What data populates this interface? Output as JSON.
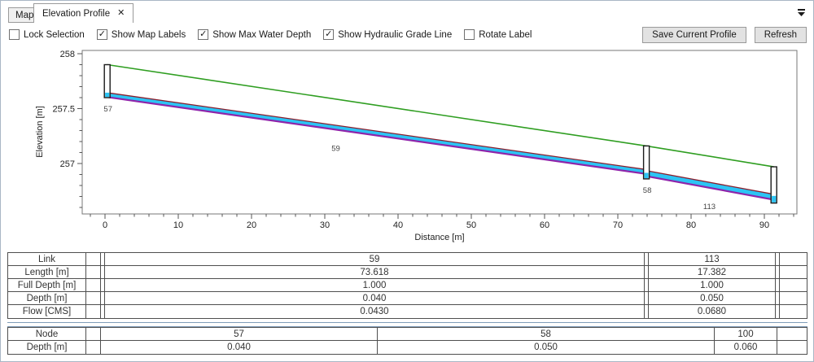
{
  "tabs": [
    {
      "label": "Map",
      "active": false
    },
    {
      "label": "Elevation Profile",
      "active": true,
      "close_glyph": "✕"
    }
  ],
  "toolbar": {
    "checkboxes": [
      {
        "label": "Lock Selection",
        "checked": false
      },
      {
        "label": "Show Map Labels",
        "checked": true
      },
      {
        "label": "Show Max Water Depth",
        "checked": true
      },
      {
        "label": "Show Hydraulic Grade Line",
        "checked": true
      },
      {
        "label": "Rotate Label",
        "checked": false
      }
    ],
    "buttons": {
      "save": "Save Current Profile",
      "refresh": "Refresh"
    }
  },
  "chart_data": {
    "type": "line",
    "title": "",
    "xlabel": "Distance [m]",
    "ylabel": "Elevation [m]",
    "xlim": [
      -3.1,
      94.5
    ],
    "ylim": [
      256.54,
      258.03
    ],
    "x_axis": {
      "major": [
        0,
        10,
        20,
        30,
        40,
        50,
        60,
        70,
        80,
        90
      ],
      "minor_from": -2,
      "minor_to": 94,
      "minor_step": 2
    },
    "y_axis": {
      "major": [
        {
          "v": 258,
          "label": "258"
        },
        {
          "v": 257.5,
          "label": "257.5"
        },
        {
          "v": 257,
          "label": "257"
        }
      ],
      "minor_from": 256.6,
      "minor_to": 258.0,
      "minor_step": 0.1
    },
    "nodes": [
      {
        "id": "57",
        "distance": 0.3,
        "rim": 257.9,
        "bottom": 257.6,
        "depth": 0.04,
        "show_label": true
      },
      {
        "id": "58",
        "distance": 73.9,
        "rim": 257.16,
        "bottom": 256.86,
        "depth": 0.05,
        "show_label": true
      },
      {
        "id": "100",
        "distance": 91.3,
        "rim": 256.97,
        "bottom": 256.64,
        "depth": 0.06,
        "show_label": false
      }
    ],
    "links": [
      {
        "id": "59",
        "from": 0.3,
        "to": 73.9,
        "invert_start": 257.605,
        "invert_end": 256.905,
        "depth": 0.04,
        "label_at": 31.5
      },
      {
        "id": "113",
        "from": 73.9,
        "to": 91.3,
        "invert_start": 256.885,
        "invert_end": 256.67,
        "depth": 0.05,
        "label_at": 82.5
      }
    ],
    "colors": {
      "ground": "#2f9e21",
      "water": "#2cc4f4",
      "hgl": "#8e24aa",
      "max_depth": "#8b1e2d",
      "node_outline": "#1a1a1a",
      "frame": "#777777",
      "tick": "#555555"
    },
    "legend": "none",
    "grid": false
  },
  "link_table": {
    "rows": [
      {
        "label": "Link",
        "values": [
          "59",
          "113"
        ]
      },
      {
        "label": "Length [m]",
        "values": [
          "73.618",
          "17.382"
        ]
      },
      {
        "label": "Full Depth [m]",
        "values": [
          "1.000",
          "1.000"
        ]
      },
      {
        "label": "Depth [m]",
        "values": [
          "0.040",
          "0.050"
        ]
      },
      {
        "label": "Flow [CMS]",
        "values": [
          "0.0430",
          "0.0680"
        ]
      }
    ]
  },
  "node_table": {
    "rows": [
      {
        "label": "Node",
        "values": [
          "57",
          "58",
          "100"
        ]
      },
      {
        "label": "Depth [m]",
        "values": [
          "0.040",
          "0.050",
          "0.060"
        ]
      }
    ]
  }
}
